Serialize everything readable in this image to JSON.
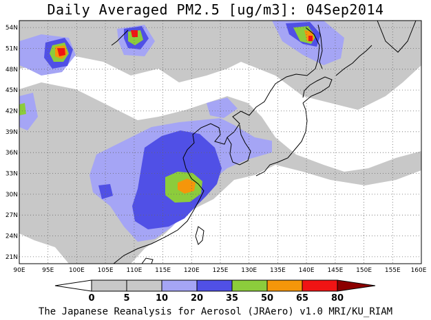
{
  "title": "Daily Averaged PM2.5 [ug/m3]: 04Sep2014",
  "credit": "The Japanese Reanalysis for Aerosol (JRAero) v1.0 MRI/KU_RIAM",
  "map": {
    "lon_range": [
      90,
      160
    ],
    "lat_range": [
      20,
      55
    ],
    "lon_ticks": [
      "90E",
      "95E",
      "100E",
      "105E",
      "110E",
      "115E",
      "120E",
      "125E",
      "130E",
      "135E",
      "140E",
      "145E",
      "150E",
      "155E",
      "160E"
    ],
    "lat_ticks": [
      "54N",
      "51N",
      "48N",
      "45N",
      "42N",
      "39N",
      "36N",
      "33N",
      "30N",
      "27N",
      "24N",
      "21N"
    ],
    "grid": true
  },
  "legend": {
    "levels": [
      "0",
      "5",
      "10",
      "20",
      "35",
      "50",
      "65",
      "80"
    ],
    "colors": [
      "#ffffff",
      "#c8c8c8",
      "#a5a5f5",
      "#5050e6",
      "#8ccc3c",
      "#f5960a",
      "#f01414",
      "#8c0000"
    ]
  }
}
